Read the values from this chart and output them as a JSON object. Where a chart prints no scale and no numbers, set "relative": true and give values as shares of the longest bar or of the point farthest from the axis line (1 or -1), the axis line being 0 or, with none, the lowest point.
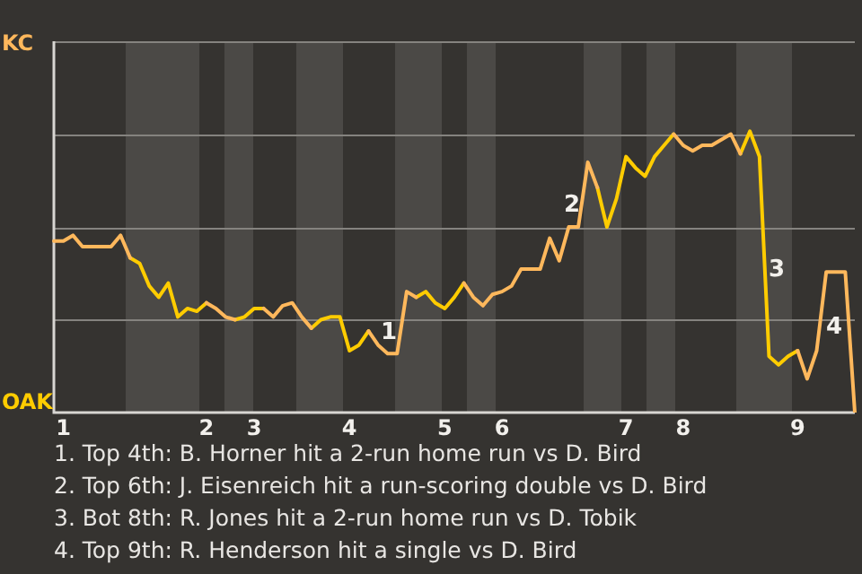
{
  "chart_data": {
    "type": "line",
    "marker": "none",
    "legend": false,
    "relative": true,
    "ref_lines": [
      {
        "axis": "y",
        "value": 0.33,
        "color": "#85837f"
      },
      {
        "axis": "y",
        "value": 0.66,
        "color": "#85837f"
      },
      {
        "axis": "y",
        "value": 0.99,
        "color": "#85837f"
      },
      {
        "axis": "y",
        "value": 1.32,
        "color": "#85837f"
      }
    ],
    "categories": [
      null,
      "1",
      null,
      null,
      null,
      null,
      null,
      null,
      null,
      null,
      null,
      null,
      null,
      null,
      null,
      null,
      "2",
      null,
      null,
      null,
      null,
      "3",
      null,
      null,
      null,
      null,
      null,
      null,
      null,
      null,
      null,
      "4",
      null,
      null,
      null,
      null,
      null,
      null,
      null,
      null,
      null,
      "5",
      null,
      null,
      null,
      null,
      null,
      "6",
      null,
      null,
      null,
      null,
      null,
      null,
      null,
      null,
      null,
      null,
      null,
      null,
      "7",
      null,
      null,
      null,
      null,
      null,
      "8",
      null,
      null,
      null,
      null,
      null,
      null,
      null,
      null,
      null,
      null,
      null,
      "9",
      null,
      null,
      null,
      null,
      null,
      null
    ],
    "series": [
      {
        "color": "#ffb85c",
        "values": [
          0.61,
          0.61,
          0.63,
          0.59,
          0.59,
          0.59,
          0.59,
          0.63,
          0.55,
          null,
          null,
          null,
          null,
          null,
          null,
          null,
          0.39,
          0.37,
          0.34,
          0.33,
          null,
          null,
          0.37,
          0.34,
          0.38,
          0.39,
          0.34,
          0.3,
          null,
          null,
          null,
          null,
          null,
          0.29,
          0.24,
          0.21,
          0.21,
          0.43,
          0.41,
          null,
          null,
          null,
          null,
          0.46,
          0.41,
          0.38,
          0.42,
          0.43,
          0.45,
          0.51,
          0.51,
          0.51,
          0.62,
          0.54,
          0.66,
          0.66,
          0.89,
          0.8,
          null,
          null,
          null,
          null,
          null,
          null,
          null,
          0.99,
          0.95,
          0.93,
          0.95,
          0.95,
          0.97,
          0.99,
          0.92,
          null,
          null,
          null,
          null,
          null,
          0.22,
          0.12,
          0.22,
          0.5,
          0.5,
          0.5,
          0
        ]
      },
      {
        "color": "#ffcc00",
        "values": [
          null,
          null,
          null,
          null,
          null,
          null,
          null,
          null,
          0.55,
          0.53,
          0.45,
          0.41,
          0.46,
          0.34,
          0.37,
          0.36,
          0.39,
          null,
          null,
          0.33,
          0.34,
          0.37,
          0.37,
          null,
          null,
          null,
          null,
          0.3,
          0.33,
          0.34,
          0.34,
          0.22,
          0.24,
          0.29,
          null,
          null,
          null,
          null,
          0.41,
          0.43,
          0.39,
          0.37,
          0.41,
          0.46,
          null,
          null,
          null,
          null,
          null,
          null,
          null,
          null,
          null,
          null,
          null,
          null,
          null,
          0.8,
          0.66,
          0.76,
          0.91,
          0.87,
          0.84,
          0.91,
          0.95,
          0.99,
          null,
          null,
          null,
          null,
          null,
          null,
          0.92,
          1,
          0.91,
          0.2,
          0.17,
          0.2,
          0.22,
          null,
          null,
          null,
          null,
          null,
          null
        ]
      }
    ],
    "annotations": [
      "KC",
      "OAK",
      "1",
      "2",
      "3",
      "4",
      "1. Top 4th: B. Horner hit a 2-run home run vs D. Bird",
      "2. Top 6th: J. Eisenreich hit a run-scoring double vs D. Bird",
      "3. Bot 8th: R. Jones hit a 2-run home run vs D. Tobik",
      "4. Top 9th: R. Henderson hit a single vs D. Bird"
    ]
  }
}
